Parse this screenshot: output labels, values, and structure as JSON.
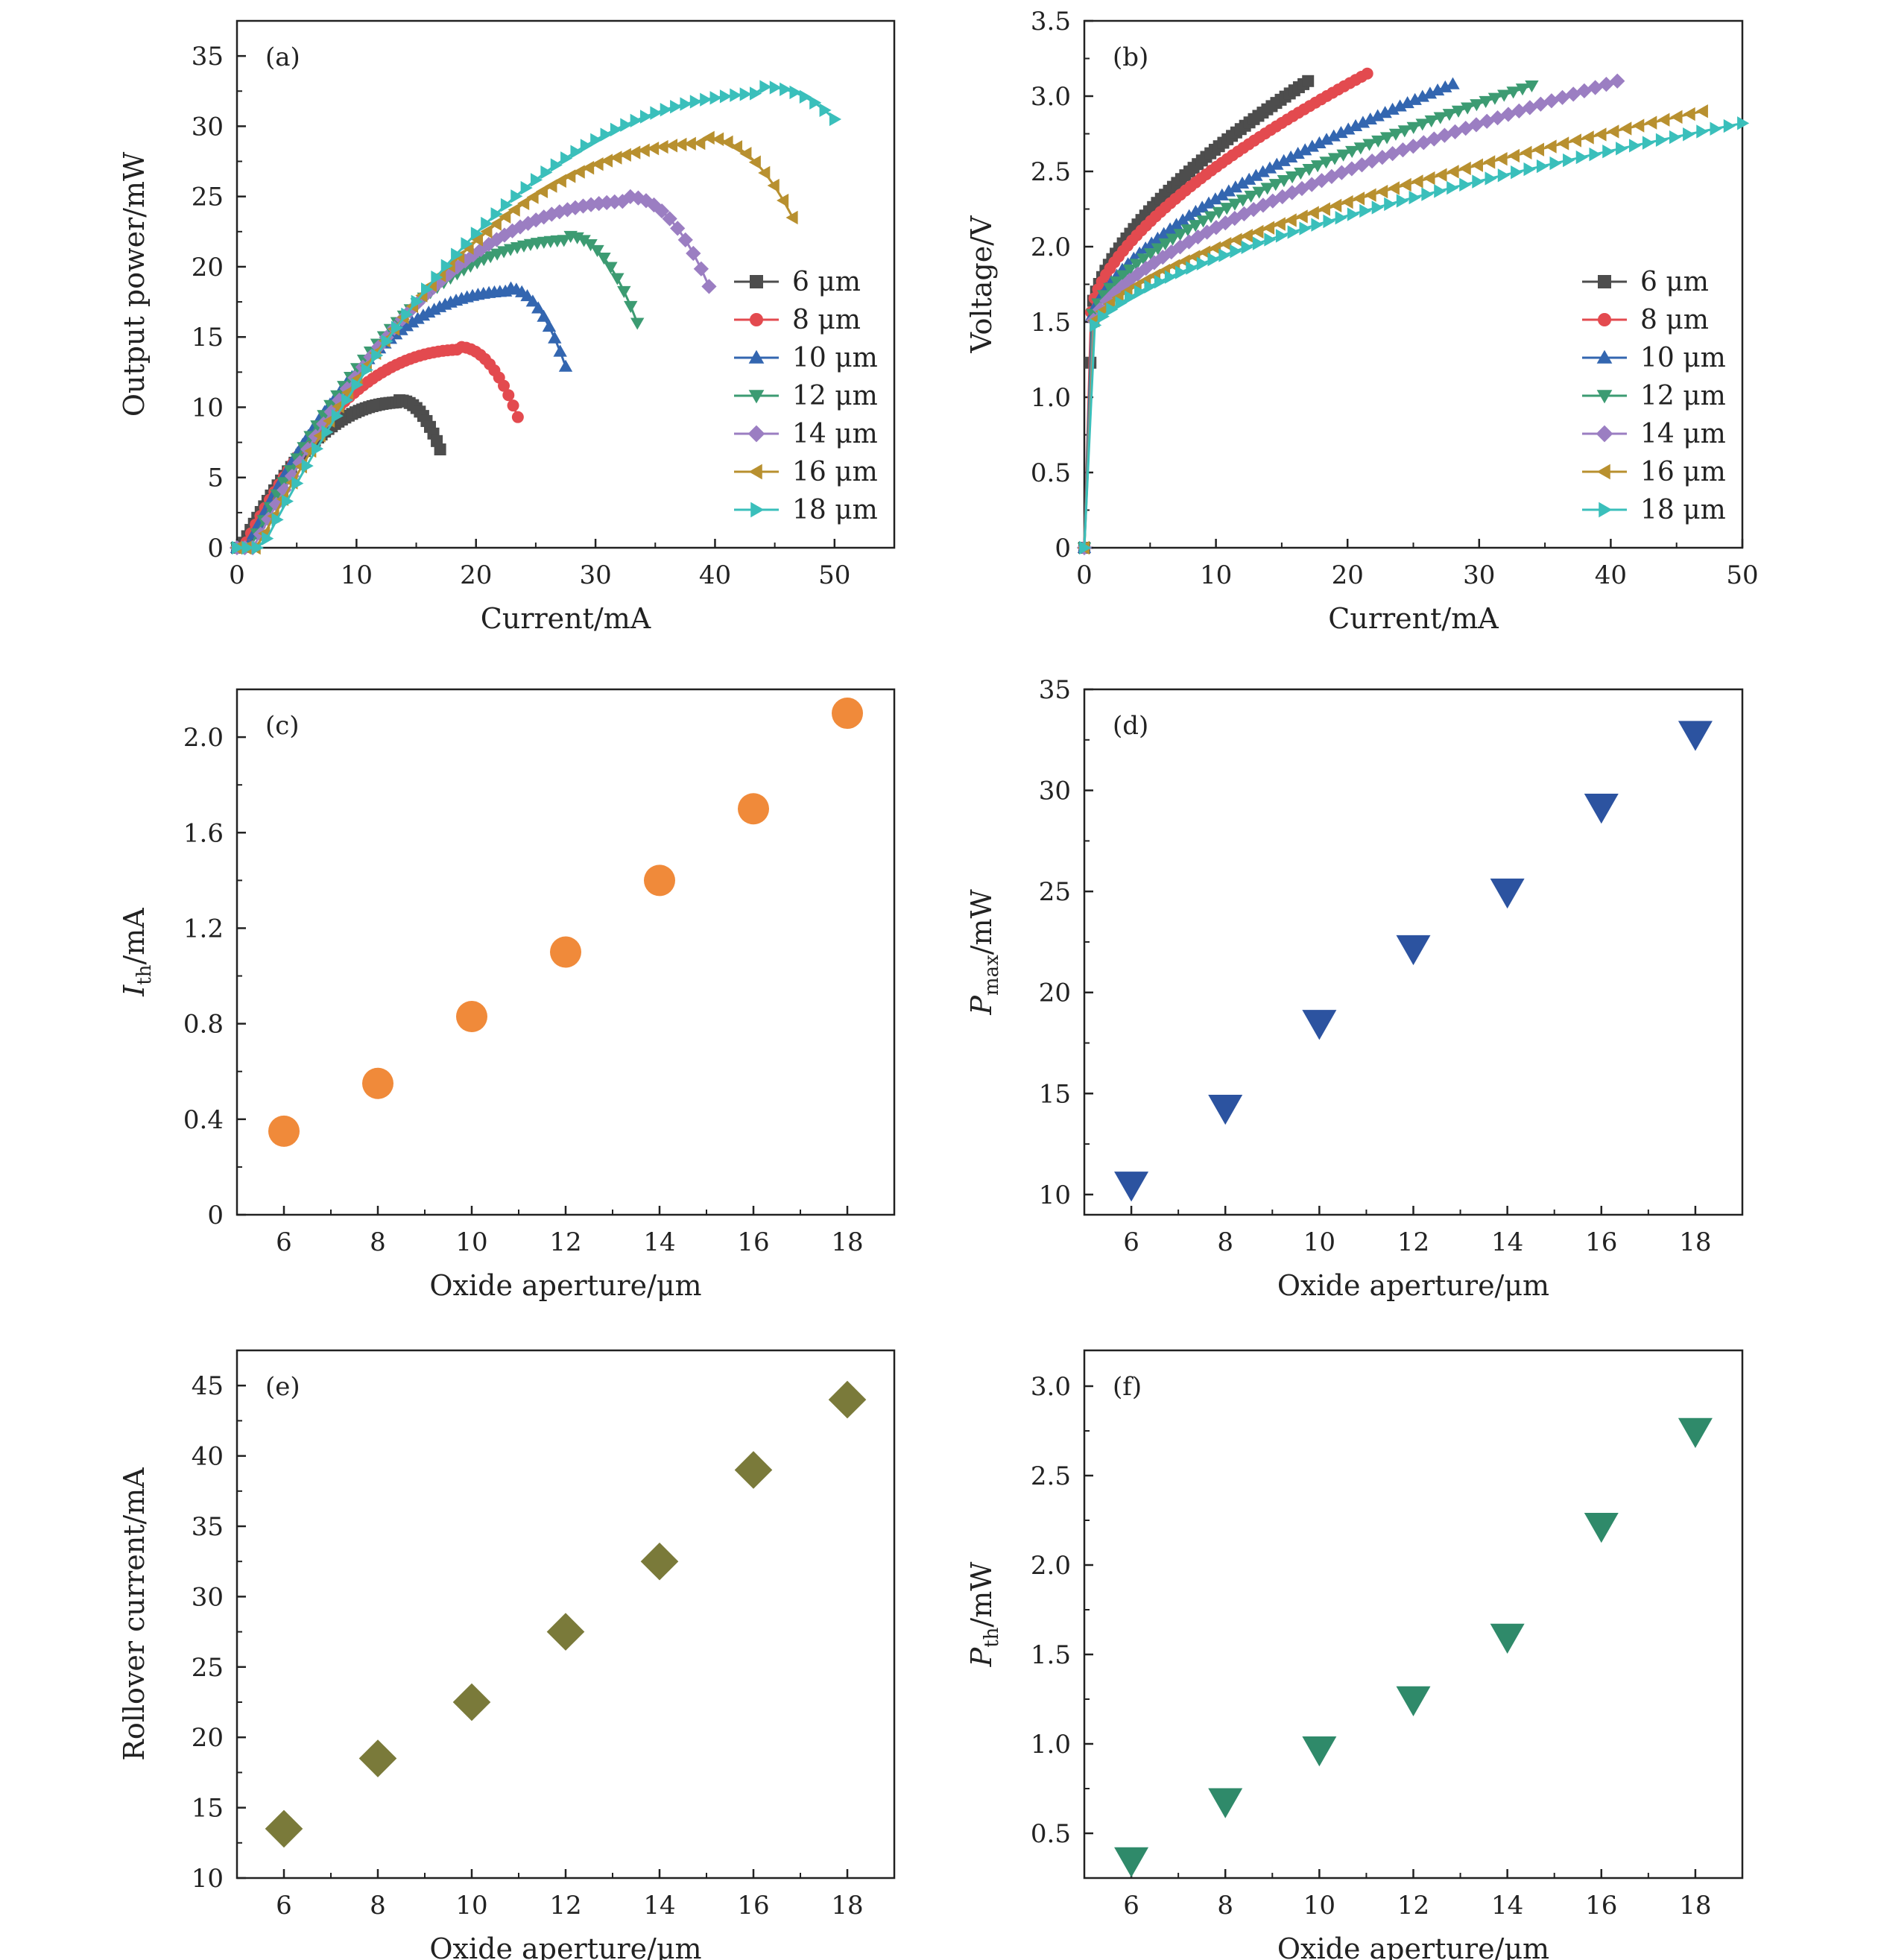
{
  "colors": {
    "6um": "#4d4d4d",
    "8um": "#e34a4f",
    "10um": "#3366b0",
    "12um": "#3c9b72",
    "14um": "#9b7ec2",
    "16um": "#b8902f",
    "18um": "#3abfbb",
    "panel_c": "#f08a3a",
    "panel_d": "#2c53a0",
    "panel_e": "#7a7a3a",
    "panel_f": "#2f8a6a"
  },
  "chart_data": [
    {
      "id": "a",
      "type": "line",
      "panel_label": "(a)",
      "xlabel": "Current/mA",
      "ylabel": "Output power/mW",
      "xlim": [
        0,
        55
      ],
      "ylim": [
        0,
        37.5
      ],
      "xticks": [
        0,
        10,
        20,
        30,
        40,
        50
      ],
      "xtick_labels": [
        "0",
        "10",
        "20",
        "30",
        "40",
        "50"
      ],
      "yticks": [
        0,
        5,
        10,
        15,
        20,
        25,
        30,
        35
      ],
      "ytick_labels": [
        "0",
        "5",
        "10",
        "15",
        "20",
        "25",
        "30",
        "35"
      ],
      "legend_position": "bottom-right",
      "series": [
        {
          "name": "6 μm",
          "marker": "square",
          "color_key": "6um",
          "ith": 0.35,
          "pmax": 10.5,
          "irollover": 13.5,
          "iend": 17.0,
          "pend": 7.0
        },
        {
          "name": "8 μm",
          "marker": "circle",
          "color_key": "8um",
          "ith": 0.55,
          "pmax": 14.3,
          "irollover": 18.5,
          "iend": 23.5,
          "pend": 9.3
        },
        {
          "name": "10 μm",
          "marker": "triangle-up",
          "color_key": "10um",
          "ith": 0.83,
          "pmax": 18.5,
          "irollover": 22.5,
          "iend": 27.5,
          "pend": 12.9
        },
        {
          "name": "12 μm",
          "marker": "triangle-down",
          "color_key": "12um",
          "ith": 1.1,
          "pmax": 22.2,
          "irollover": 27.5,
          "iend": 33.5,
          "pend": 16.0
        },
        {
          "name": "14 μm",
          "marker": "diamond",
          "color_key": "14um",
          "ith": 1.4,
          "pmax": 25.0,
          "irollover": 32.5,
          "iend": 39.5,
          "pend": 18.6
        },
        {
          "name": "16 μm",
          "marker": "triangle-left",
          "color_key": "16um",
          "ith": 1.7,
          "pmax": 29.2,
          "irollover": 39.0,
          "iend": 46.5,
          "pend": 23.5
        },
        {
          "name": "18 μm",
          "marker": "triangle-right",
          "color_key": "18um",
          "ith": 2.1,
          "pmax": 32.8,
          "irollover": 44.0,
          "iend": 50.0,
          "pend": 30.5
        }
      ]
    },
    {
      "id": "b",
      "type": "line",
      "panel_label": "(b)",
      "xlabel": "Current/mA",
      "ylabel": "Voltage/V",
      "xlim": [
        0,
        50
      ],
      "ylim": [
        0,
        3.5
      ],
      "xticks": [
        0,
        10,
        20,
        30,
        40,
        50
      ],
      "xtick_labels": [
        "0",
        "10",
        "20",
        "30",
        "40",
        "50"
      ],
      "yticks": [
        0,
        0.5,
        1.0,
        1.5,
        2.0,
        2.5,
        3.0,
        3.5
      ],
      "ytick_labels": [
        "0",
        "0.5",
        "1.0",
        "1.5",
        "2.0",
        "2.5",
        "3.0",
        "3.5"
      ],
      "legend_position": "bottom-right",
      "series": [
        {
          "name": "6 μm",
          "marker": "square",
          "color_key": "6um",
          "v0": 1.55,
          "vmax": 3.1,
          "imax": 17.0
        },
        {
          "name": "8 μm",
          "marker": "circle",
          "color_key": "8um",
          "v0": 1.55,
          "vmax": 3.15,
          "imax": 21.5
        },
        {
          "name": "10 μm",
          "marker": "triangle-up",
          "color_key": "10um",
          "v0": 1.5,
          "vmax": 3.08,
          "imax": 28.0
        },
        {
          "name": "12 μm",
          "marker": "triangle-down",
          "color_key": "12um",
          "v0": 1.5,
          "vmax": 3.07,
          "imax": 34.0
        },
        {
          "name": "14 μm",
          "marker": "diamond",
          "color_key": "14um",
          "v0": 1.45,
          "vmax": 3.1,
          "imax": 40.5
        },
        {
          "name": "16 μm",
          "marker": "triangle-left",
          "color_key": "16um",
          "v0": 1.45,
          "vmax": 2.9,
          "imax": 47.0
        },
        {
          "name": "18 μm",
          "marker": "triangle-right",
          "color_key": "18um",
          "v0": 1.42,
          "vmax": 2.82,
          "imax": 50.0
        }
      ]
    },
    {
      "id": "c",
      "type": "scatter",
      "panel_label": "(c)",
      "xlabel": "Oxide aperture/μm",
      "ylabel_main": "I",
      "ylabel_sub": "th",
      "ylabel_rest": "/mA",
      "marker": "circle",
      "color_key": "panel_c",
      "xlim": [
        5,
        19
      ],
      "ylim": [
        0,
        2.2
      ],
      "xticks": [
        6,
        8,
        10,
        12,
        14,
        16,
        18
      ],
      "xtick_labels": [
        "6",
        "8",
        "10",
        "12",
        "14",
        "16",
        "18"
      ],
      "yticks": [
        0,
        0.4,
        0.8,
        1.2,
        1.6,
        2.0
      ],
      "ytick_labels": [
        "0",
        "0.4",
        "0.8",
        "1.2",
        "1.6",
        "2.0"
      ],
      "x": [
        6,
        8,
        10,
        12,
        14,
        16,
        18
      ],
      "y": [
        0.35,
        0.55,
        0.83,
        1.1,
        1.4,
        1.7,
        2.1
      ]
    },
    {
      "id": "d",
      "type": "scatter",
      "panel_label": "(d)",
      "xlabel": "Oxide aperture/μm",
      "ylabel_main": "P",
      "ylabel_sub": "max",
      "ylabel_rest": "/mW",
      "marker": "triangle-down",
      "color_key": "panel_d",
      "xlim": [
        5,
        19
      ],
      "ylim": [
        9,
        35
      ],
      "xticks": [
        6,
        8,
        10,
        12,
        14,
        16,
        18
      ],
      "xtick_labels": [
        "6",
        "8",
        "10",
        "12",
        "14",
        "16",
        "18"
      ],
      "yticks": [
        10,
        15,
        20,
        25,
        30,
        35
      ],
      "ytick_labels": [
        "10",
        "15",
        "20",
        "25",
        "30",
        "35"
      ],
      "x": [
        6,
        8,
        10,
        12,
        14,
        16,
        18
      ],
      "y": [
        10.5,
        14.3,
        18.5,
        22.2,
        25.0,
        29.2,
        32.8
      ]
    },
    {
      "id": "e",
      "type": "scatter",
      "panel_label": "(e)",
      "xlabel": "Oxide aperture/μm",
      "ylabel_main": "Rollover current/mA",
      "ylabel_sub": "",
      "ylabel_rest": "",
      "marker": "diamond",
      "color_key": "panel_e",
      "xlim": [
        5,
        19
      ],
      "ylim": [
        10,
        47.5
      ],
      "xticks": [
        6,
        8,
        10,
        12,
        14,
        16,
        18
      ],
      "xtick_labels": [
        "6",
        "8",
        "10",
        "12",
        "14",
        "16",
        "18"
      ],
      "yticks": [
        10,
        15,
        20,
        25,
        30,
        35,
        40,
        45
      ],
      "ytick_labels": [
        "10",
        "15",
        "20",
        "25",
        "30",
        "35",
        "40",
        "45"
      ],
      "x": [
        6,
        8,
        10,
        12,
        14,
        16,
        18
      ],
      "y": [
        13.5,
        18.5,
        22.5,
        27.5,
        32.5,
        39.0,
        44.0
      ]
    },
    {
      "id": "f",
      "type": "scatter",
      "panel_label": "(f)",
      "xlabel": "Oxide aperture/μm",
      "ylabel_main": "P",
      "ylabel_sub": "th",
      "ylabel_rest": "/mW",
      "marker": "triangle-down",
      "color_key": "panel_f",
      "xlim": [
        5,
        19
      ],
      "ylim": [
        0.25,
        3.2
      ],
      "xticks": [
        6,
        8,
        10,
        12,
        14,
        16,
        18
      ],
      "xtick_labels": [
        "6",
        "8",
        "10",
        "12",
        "14",
        "16",
        "18"
      ],
      "yticks": [
        0.5,
        1.0,
        1.5,
        2.0,
        2.5,
        3.0
      ],
      "ytick_labels": [
        "0.5",
        "1.0",
        "1.5",
        "2.0",
        "2.5",
        "3.0"
      ],
      "x": [
        6,
        8,
        10,
        12,
        14,
        16,
        18
      ],
      "y": [
        0.35,
        0.68,
        0.97,
        1.25,
        1.6,
        2.22,
        2.75
      ]
    }
  ]
}
